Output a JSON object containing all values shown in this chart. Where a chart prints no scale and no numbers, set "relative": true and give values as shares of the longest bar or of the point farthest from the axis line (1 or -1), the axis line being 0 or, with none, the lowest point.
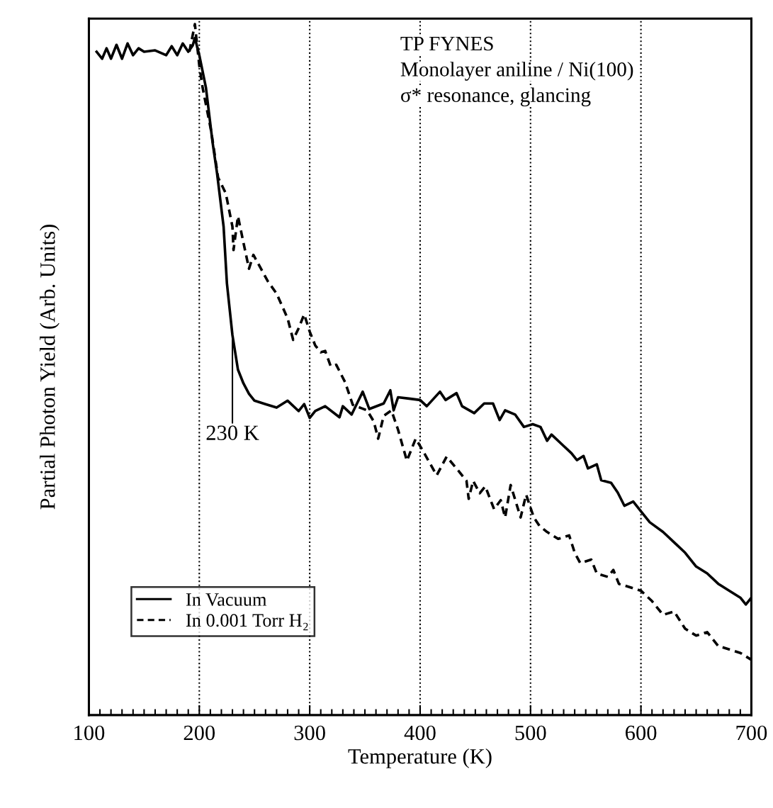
{
  "chart_data": {
    "type": "line",
    "relative": true,
    "xlabel": "Temperature (K)",
    "ylabel": "Partial Photon Yield (Arb. Units)",
    "xlim": [
      100,
      700
    ],
    "xticks": [
      100,
      200,
      300,
      400,
      500,
      600,
      700
    ],
    "grid": "x",
    "legend": "bottom left",
    "tick_labels": "x",
    "annotations": [
      "TP FYNES",
      "Monolayer aniline / Ni(100)",
      "σ* resonance, glancing",
      {
        "text": "230 K",
        "x": 230,
        "y": 0.55
      }
    ],
    "series": [
      {
        "name": "In Vacuum",
        "color": "#000000",
        "line_style": "solid",
        "x": [
          107,
          112,
          116,
          120,
          125,
          130,
          135,
          140,
          145,
          150,
          160,
          170,
          175,
          180,
          185,
          190,
          194,
          196,
          200,
          206,
          212,
          216,
          222,
          225,
          230,
          235,
          240,
          245,
          250,
          260,
          270,
          280,
          290,
          295,
          300,
          305,
          314,
          327,
          330,
          338,
          348,
          354,
          367,
          373,
          376,
          380,
          390,
          400,
          406,
          418,
          423,
          433,
          438,
          449,
          458,
          466,
          472,
          477,
          486,
          494,
          502,
          509,
          515,
          519,
          529,
          537,
          542,
          548,
          552,
          560,
          564,
          573,
          579,
          585,
          593,
          601,
          608,
          620,
          630,
          640,
          650,
          660,
          670,
          680,
          690,
          695,
          700
        ],
        "values": [
          0.96,
          0.95,
          0.965,
          0.95,
          0.97,
          0.95,
          0.972,
          0.955,
          0.965,
          0.96,
          0.962,
          0.955,
          0.968,
          0.955,
          0.972,
          0.96,
          0.969,
          0.98,
          0.955,
          0.908,
          0.829,
          0.785,
          0.707,
          0.625,
          0.55,
          0.5,
          0.48,
          0.465,
          0.455,
          0.45,
          0.445,
          0.455,
          0.44,
          0.45,
          0.43,
          0.44,
          0.447,
          0.431,
          0.447,
          0.435,
          0.468,
          0.443,
          0.451,
          0.47,
          0.441,
          0.46,
          0.458,
          0.456,
          0.447,
          0.468,
          0.456,
          0.466,
          0.447,
          0.437,
          0.451,
          0.451,
          0.427,
          0.441,
          0.435,
          0.417,
          0.421,
          0.417,
          0.397,
          0.406,
          0.391,
          0.379,
          0.369,
          0.375,
          0.357,
          0.363,
          0.34,
          0.336,
          0.322,
          0.303,
          0.309,
          0.293,
          0.279,
          0.265,
          0.25,
          0.235,
          0.215,
          0.205,
          0.19,
          0.18,
          0.17,
          0.16,
          0.17
        ]
      },
      {
        "name": "In 0.001 Torr H₂",
        "color": "#000000",
        "line_style": "dashed",
        "x": [
          191,
          196,
          200,
          203,
          211,
          217,
          224,
          230,
          231,
          235,
          241,
          245,
          249,
          262,
          270,
          280,
          285,
          290,
          295,
          300,
          305,
          310,
          314,
          319,
          324,
          332,
          339,
          352,
          358,
          362,
          367,
          374,
          380,
          388,
          396,
          402,
          415,
          424,
          434,
          442,
          444,
          448,
          454,
          459,
          467,
          473,
          477,
          482,
          491,
          496,
          503,
          508,
          515,
          525,
          535,
          540,
          545,
          555,
          560,
          570,
          575,
          580,
          590,
          600,
          610,
          620,
          630,
          640,
          650,
          660,
          670,
          680,
          690,
          700
        ],
        "values": [
          0.96,
          1.0,
          0.94,
          0.908,
          0.843,
          0.778,
          0.755,
          0.707,
          0.673,
          0.722,
          0.676,
          0.646,
          0.666,
          0.628,
          0.61,
          0.574,
          0.543,
          0.56,
          0.58,
          0.555,
          0.535,
          0.525,
          0.527,
          0.505,
          0.507,
          0.482,
          0.449,
          0.441,
          0.425,
          0.4,
          0.433,
          0.441,
          0.413,
          0.368,
          0.4,
          0.384,
          0.347,
          0.374,
          0.355,
          0.339,
          0.313,
          0.339,
          0.321,
          0.331,
          0.298,
          0.311,
          0.286,
          0.333,
          0.286,
          0.319,
          0.286,
          0.274,
          0.265,
          0.255,
          0.26,
          0.235,
          0.22,
          0.225,
          0.205,
          0.2,
          0.21,
          0.19,
          0.185,
          0.18,
          0.165,
          0.145,
          0.15,
          0.125,
          0.115,
          0.12,
          0.1,
          0.095,
          0.09,
          0.08
        ]
      }
    ]
  }
}
